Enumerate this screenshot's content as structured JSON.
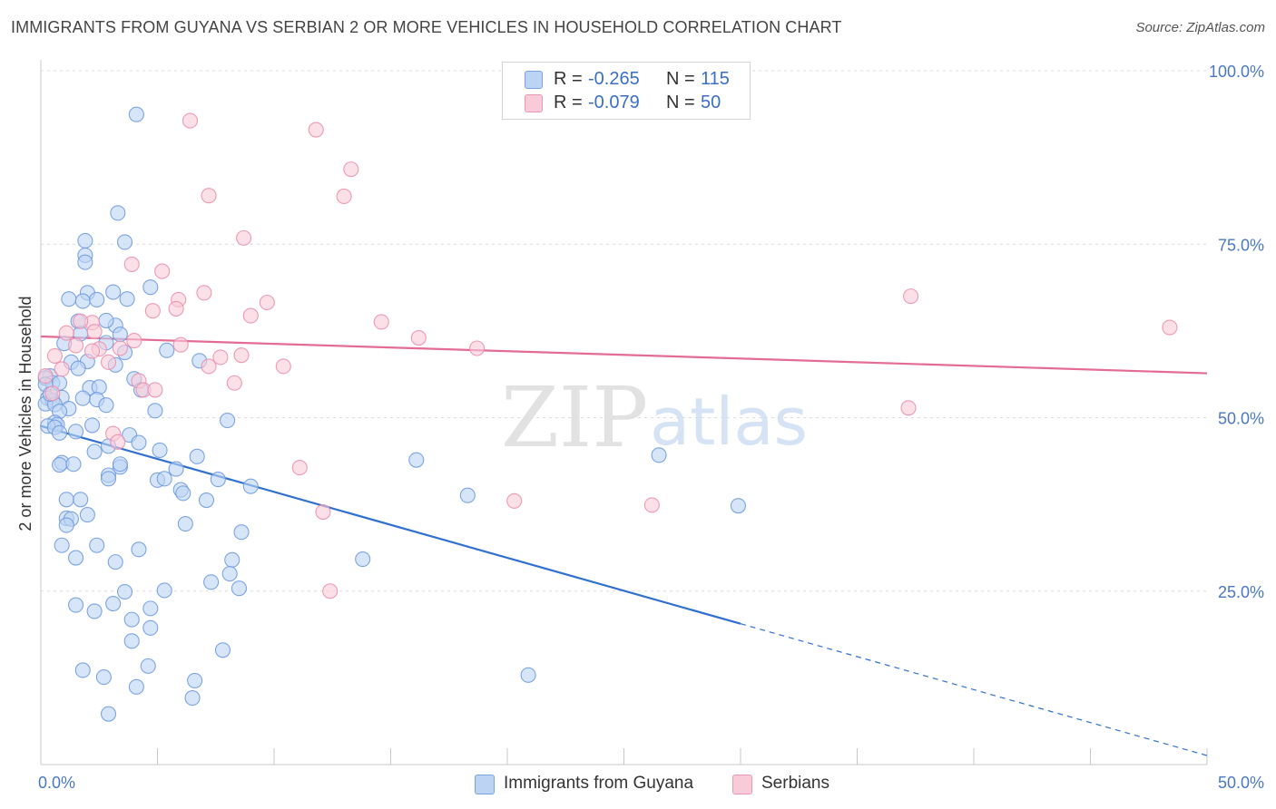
{
  "title": "IMMIGRANTS FROM GUYANA VS SERBIAN 2 OR MORE VEHICLES IN HOUSEHOLD CORRELATION CHART",
  "source": "Source: ZipAtlas.com",
  "watermark": {
    "zip": "ZIP",
    "atlas": "atlas"
  },
  "legend_top": [
    {
      "r_label": "R =",
      "r_value": "-0.265",
      "n_label": "N =",
      "n_value": "115",
      "color": "#a9c4ee"
    },
    {
      "r_label": "R =",
      "r_value": "-0.079",
      "n_label": "N =",
      "n_value": "50",
      "color": "#f6b6ca"
    }
  ],
  "chart_data": {
    "type": "scatter",
    "xlabel": "",
    "ylabel": "2 or more Vehicles in Household",
    "xlim": [
      0,
      50
    ],
    "ylim": [
      0,
      100
    ],
    "x_tick_labels": [
      "0.0%",
      "50.0%"
    ],
    "y_ticks": [
      25,
      50,
      75,
      100
    ],
    "y_tick_labels": [
      "25.0%",
      "50.0%",
      "75.0%",
      "100.0%"
    ],
    "grid": true,
    "legend_position": "bottom",
    "series": [
      {
        "name": "Immigrants from Guyana",
        "color": "#6f9be0",
        "fill": "#bcd3f3",
        "trend": {
          "x0": 0,
          "y0": 48.8,
          "x1": 30,
          "y1": 20.3,
          "dashed_to_x": 50,
          "dashed_to_y": 1.3,
          "color": "#3070d0"
        },
        "points": [
          [
            4.1,
            93.7
          ],
          [
            3.3,
            79.5
          ],
          [
            1.9,
            75.5
          ],
          [
            3.6,
            75.3
          ],
          [
            1.9,
            73.4
          ],
          [
            1.9,
            72.4
          ],
          [
            2.0,
            68.0
          ],
          [
            3.1,
            68.1
          ],
          [
            1.2,
            67.1
          ],
          [
            1.8,
            66.8
          ],
          [
            2.4,
            67.0
          ],
          [
            3.7,
            67.1
          ],
          [
            4.7,
            68.8
          ],
          [
            1.6,
            63.9
          ],
          [
            3.2,
            63.3
          ],
          [
            2.8,
            64.0
          ],
          [
            3.4,
            62.0
          ],
          [
            1.7,
            62.1
          ],
          [
            2.8,
            60.8
          ],
          [
            1.0,
            60.7
          ],
          [
            5.4,
            59.7
          ],
          [
            3.6,
            59.4
          ],
          [
            6.8,
            58.2
          ],
          [
            1.3,
            58.0
          ],
          [
            2.0,
            58.1
          ],
          [
            3.2,
            57.6
          ],
          [
            1.6,
            57.1
          ],
          [
            0.4,
            56.0
          ],
          [
            0.2,
            55.7
          ],
          [
            4.0,
            55.6
          ],
          [
            0.5,
            55.0
          ],
          [
            0.8,
            55.0
          ],
          [
            0.2,
            54.8
          ],
          [
            2.1,
            54.3
          ],
          [
            2.5,
            54.4
          ],
          [
            4.3,
            54.0
          ],
          [
            0.3,
            52.8
          ],
          [
            0.9,
            52.9
          ],
          [
            1.8,
            52.8
          ],
          [
            2.4,
            52.6
          ],
          [
            0.5,
            52.5
          ],
          [
            0.2,
            52.0
          ],
          [
            0.6,
            51.9
          ],
          [
            1.2,
            51.3
          ],
          [
            4.9,
            51.0
          ],
          [
            0.8,
            50.9
          ],
          [
            8.0,
            49.6
          ],
          [
            0.6,
            49.3
          ],
          [
            0.7,
            49.0
          ],
          [
            2.2,
            48.9
          ],
          [
            0.3,
            48.8
          ],
          [
            0.6,
            48.6
          ],
          [
            1.5,
            48.0
          ],
          [
            3.8,
            47.5
          ],
          [
            0.8,
            47.8
          ],
          [
            4.2,
            46.4
          ],
          [
            2.9,
            45.9
          ],
          [
            5.1,
            45.3
          ],
          [
            2.3,
            45.1
          ],
          [
            16.1,
            43.9
          ],
          [
            26.5,
            44.6
          ],
          [
            0.9,
            43.5
          ],
          [
            0.8,
            43.2
          ],
          [
            1.4,
            43.3
          ],
          [
            3.4,
            42.9
          ],
          [
            5.8,
            42.6
          ],
          [
            2.9,
            41.7
          ],
          [
            2.9,
            41.2
          ],
          [
            5.0,
            41.0
          ],
          [
            5.3,
            41.2
          ],
          [
            7.6,
            41.1
          ],
          [
            6.0,
            39.6
          ],
          [
            6.1,
            39.1
          ],
          [
            18.3,
            38.8
          ],
          [
            1.1,
            38.2
          ],
          [
            1.7,
            38.2
          ],
          [
            7.1,
            38.1
          ],
          [
            29.9,
            37.3
          ],
          [
            1.1,
            35.5
          ],
          [
            1.3,
            35.4
          ],
          [
            1.1,
            34.5
          ],
          [
            6.2,
            34.7
          ],
          [
            8.6,
            33.5
          ],
          [
            0.9,
            31.6
          ],
          [
            2.4,
            31.6
          ],
          [
            4.2,
            31.0
          ],
          [
            1.5,
            29.8
          ],
          [
            8.2,
            29.5
          ],
          [
            3.2,
            29.2
          ],
          [
            13.8,
            29.6
          ],
          [
            8.1,
            27.5
          ],
          [
            7.3,
            26.3
          ],
          [
            8.5,
            25.4
          ],
          [
            5.3,
            25.1
          ],
          [
            3.6,
            24.9
          ],
          [
            3.1,
            23.2
          ],
          [
            1.5,
            23.0
          ],
          [
            4.7,
            22.5
          ],
          [
            2.3,
            22.1
          ],
          [
            3.9,
            20.9
          ],
          [
            4.7,
            19.7
          ],
          [
            3.9,
            17.8
          ],
          [
            7.8,
            16.5
          ],
          [
            1.8,
            13.6
          ],
          [
            4.6,
            14.2
          ],
          [
            2.7,
            12.6
          ],
          [
            6.6,
            12.1
          ],
          [
            20.9,
            12.9
          ],
          [
            4.1,
            11.2
          ],
          [
            6.5,
            9.6
          ],
          [
            2.9,
            7.3
          ],
          [
            0.4,
            53.4
          ],
          [
            2.8,
            51.8
          ],
          [
            3.4,
            43.3
          ],
          [
            6.7,
            44.4
          ],
          [
            9.0,
            40.1
          ],
          [
            2.0,
            36.0
          ]
        ]
      },
      {
        "name": "Serbians",
        "color": "#eb8fae",
        "fill": "#f9cbd9",
        "trend": {
          "x0": 0,
          "y0": 61.7,
          "x1": 50,
          "y1": 56.4,
          "color": "#e36b95"
        },
        "points": [
          [
            6.4,
            92.8
          ],
          [
            11.8,
            91.5
          ],
          [
            13.3,
            85.8
          ],
          [
            7.2,
            82.0
          ],
          [
            13.0,
            81.9
          ],
          [
            8.7,
            75.9
          ],
          [
            3.9,
            72.1
          ],
          [
            5.2,
            71.1
          ],
          [
            7.0,
            68.0
          ],
          [
            37.3,
            67.5
          ],
          [
            9.7,
            66.6
          ],
          [
            5.9,
            67.0
          ],
          [
            5.8,
            65.7
          ],
          [
            4.8,
            65.4
          ],
          [
            9.0,
            64.7
          ],
          [
            14.6,
            63.8
          ],
          [
            2.2,
            63.7
          ],
          [
            1.7,
            63.9
          ],
          [
            48.4,
            63.0
          ],
          [
            1.1,
            62.2
          ],
          [
            16.2,
            61.5
          ],
          [
            2.3,
            62.4
          ],
          [
            4.0,
            61.1
          ],
          [
            6.0,
            60.5
          ],
          [
            18.7,
            60.0
          ],
          [
            2.5,
            59.9
          ],
          [
            2.2,
            59.6
          ],
          [
            8.6,
            59.0
          ],
          [
            7.7,
            58.7
          ],
          [
            0.6,
            58.9
          ],
          [
            2.9,
            58.0
          ],
          [
            7.2,
            57.4
          ],
          [
            10.4,
            57.4
          ],
          [
            0.9,
            57.0
          ],
          [
            0.2,
            56.0
          ],
          [
            4.2,
            55.3
          ],
          [
            8.3,
            55.0
          ],
          [
            4.4,
            54.0
          ],
          [
            4.9,
            54.0
          ],
          [
            0.5,
            53.5
          ],
          [
            37.2,
            51.4
          ],
          [
            3.1,
            47.7
          ],
          [
            3.3,
            46.5
          ],
          [
            11.1,
            42.8
          ],
          [
            20.3,
            38.0
          ],
          [
            26.2,
            37.4
          ],
          [
            12.1,
            36.4
          ],
          [
            12.4,
            25.0
          ],
          [
            1.5,
            60.4
          ],
          [
            3.4,
            60.0
          ]
        ]
      }
    ]
  }
}
